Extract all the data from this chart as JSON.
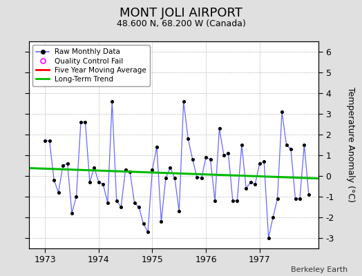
{
  "title": "MONT JOLI AIRPORT",
  "subtitle": "48.600 N, 68.200 W (Canada)",
  "credit": "Berkeley Earth",
  "ylabel": "Temperature Anomaly (°C)",
  "ylim": [
    -3.5,
    6.5
  ],
  "yticks": [
    -3,
    -2,
    -1,
    0,
    1,
    2,
    3,
    4,
    5,
    6
  ],
  "xlim": [
    1972.7,
    1978.1
  ],
  "xticks": [
    1973,
    1974,
    1975,
    1976,
    1977
  ],
  "background_color": "#e0e0e0",
  "plot_bg_color": "#ffffff",
  "raw_data": {
    "x": [
      1973.0,
      1973.083,
      1973.167,
      1973.25,
      1973.333,
      1973.417,
      1973.5,
      1973.583,
      1973.667,
      1973.75,
      1973.833,
      1973.917,
      1974.0,
      1974.083,
      1974.167,
      1974.25,
      1974.333,
      1974.417,
      1974.5,
      1974.583,
      1974.667,
      1974.75,
      1974.833,
      1974.917,
      1975.0,
      1975.083,
      1975.167,
      1975.25,
      1975.333,
      1975.417,
      1975.5,
      1975.583,
      1975.667,
      1975.75,
      1975.833,
      1975.917,
      1976.0,
      1976.083,
      1976.167,
      1976.25,
      1976.333,
      1976.417,
      1976.5,
      1976.583,
      1976.667,
      1976.75,
      1976.833,
      1976.917,
      1977.0,
      1977.083,
      1977.167,
      1977.25,
      1977.333,
      1977.417,
      1977.5,
      1977.583,
      1977.667,
      1977.75,
      1977.833,
      1977.917
    ],
    "y": [
      1.7,
      1.7,
      -0.2,
      -0.8,
      0.5,
      0.6,
      -1.8,
      -1.0,
      2.6,
      2.6,
      -0.3,
      0.4,
      -0.3,
      -0.4,
      -1.3,
      3.6,
      -1.2,
      -1.5,
      0.3,
      0.2,
      -1.3,
      -1.5,
      -2.3,
      -2.7,
      0.3,
      1.4,
      -2.2,
      -0.1,
      0.4,
      -0.1,
      -1.7,
      3.6,
      1.8,
      0.8,
      -0.05,
      -0.1,
      0.9,
      0.8,
      -1.2,
      2.3,
      1.0,
      1.1,
      -1.2,
      -1.2,
      1.5,
      -0.6,
      -0.3,
      -0.4,
      0.6,
      0.7,
      -3.0,
      -2.0,
      -1.1,
      3.1,
      1.5,
      1.3,
      -1.1,
      -1.1,
      1.5,
      -0.9
    ]
  },
  "trend_x": [
    1972.7,
    1978.1
  ],
  "trend_y": [
    0.38,
    -0.12
  ],
  "raw_line_color": "#6666ff",
  "raw_dot_color": "#000000",
  "trend_color": "#00bb00",
  "moving_avg_color": "#ff0000",
  "legend_loc": "upper left",
  "title_fontsize": 13,
  "subtitle_fontsize": 9,
  "tick_fontsize": 9,
  "credit_fontsize": 8
}
